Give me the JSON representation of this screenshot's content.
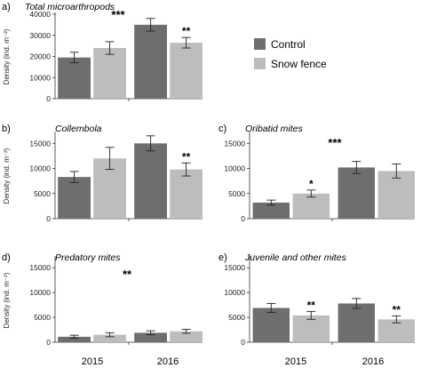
{
  "colors": {
    "control": "#6e6e6e",
    "snow_fence": "#bdbdbd",
    "axis": "#333333",
    "errorbar": "#222222"
  },
  "legend": {
    "items": [
      {
        "label": "Control",
        "color": "#6e6e6e"
      },
      {
        "label": "Snow fence",
        "color": "#bdbdbd"
      }
    ]
  },
  "x_years": [
    "2015",
    "2016"
  ],
  "chart_data": [
    {
      "panel": "a)",
      "type": "bar",
      "title": "Total microarthropods",
      "ylabel": "Density (ind. m⁻²)",
      "ylim": [
        0,
        40000
      ],
      "yticks": [
        0,
        10000,
        20000,
        30000,
        40000
      ],
      "ytick_labels": [
        "0",
        "10000",
        "20000",
        "30000",
        "40000"
      ],
      "categories": [
        "2015",
        "2016"
      ],
      "series": [
        {
          "name": "Control",
          "values": [
            19500,
            35000
          ],
          "errors": [
            2500,
            3000
          ]
        },
        {
          "name": "Snow fence",
          "values": [
            24000,
            26500
          ],
          "errors": [
            3000,
            2500
          ]
        }
      ],
      "year_stars": [
        "",
        "**"
      ],
      "overall_star": "***"
    },
    {
      "panel": "b)",
      "type": "bar",
      "title": "Collembola",
      "ylabel": "Density (ind. m⁻²)",
      "ylim": [
        0,
        17000
      ],
      "yticks": [
        0,
        5000,
        10000,
        15000
      ],
      "ytick_labels": [
        "0",
        "5000",
        "10000",
        "15000"
      ],
      "categories": [
        "2015",
        "2016"
      ],
      "series": [
        {
          "name": "Control",
          "values": [
            8300,
            15000
          ],
          "errors": [
            1100,
            1500
          ]
        },
        {
          "name": "Snow fence",
          "values": [
            12000,
            9800
          ],
          "errors": [
            2200,
            1300
          ]
        }
      ],
      "year_stars": [
        "",
        "**"
      ],
      "overall_star": ""
    },
    {
      "panel": "c)",
      "type": "bar",
      "title": "Oribatid mites",
      "ylabel": "",
      "ylim": [
        0,
        17000
      ],
      "yticks": [
        0,
        5000,
        10000,
        15000
      ],
      "ytick_labels": [
        "0",
        "5000",
        "10000",
        "15000"
      ],
      "categories": [
        "2015",
        "2016"
      ],
      "series": [
        {
          "name": "Control",
          "values": [
            3200,
            10200
          ],
          "errors": [
            500,
            1200
          ]
        },
        {
          "name": "Snow fence",
          "values": [
            5000,
            9500
          ],
          "errors": [
            700,
            1400
          ]
        }
      ],
      "year_stars": [
        "*",
        ""
      ],
      "overall_star": "***"
    },
    {
      "panel": "d)",
      "type": "bar",
      "title": "Predatory mites",
      "ylabel": "Density (ind. m⁻²)",
      "ylim": [
        0,
        17000
      ],
      "yticks": [
        0,
        5000,
        10000,
        15000
      ],
      "ytick_labels": [
        "0",
        "5000",
        "10000",
        "15000"
      ],
      "categories": [
        "2015",
        "2016"
      ],
      "series": [
        {
          "name": "Control",
          "values": [
            1100,
            1900
          ],
          "errors": [
            300,
            400
          ]
        },
        {
          "name": "Snow fence",
          "values": [
            1500,
            2200
          ],
          "errors": [
            400,
            400
          ]
        }
      ],
      "year_stars": [
        "",
        ""
      ],
      "overall_star": "**"
    },
    {
      "panel": "e)",
      "type": "bar",
      "title": "Juvenile and other mites",
      "ylabel": "",
      "ylim": [
        0,
        17000
      ],
      "yticks": [
        0,
        5000,
        10000,
        15000
      ],
      "ytick_labels": [
        "0",
        "5000",
        "10000",
        "15000"
      ],
      "categories": [
        "2015",
        "2016"
      ],
      "series": [
        {
          "name": "Control",
          "values": [
            6900,
            7800
          ],
          "errors": [
            900,
            1000
          ]
        },
        {
          "name": "Snow fence",
          "values": [
            5400,
            4600
          ],
          "errors": [
            800,
            700
          ]
        }
      ],
      "year_stars": [
        "**",
        "**"
      ],
      "overall_star": ""
    }
  ]
}
